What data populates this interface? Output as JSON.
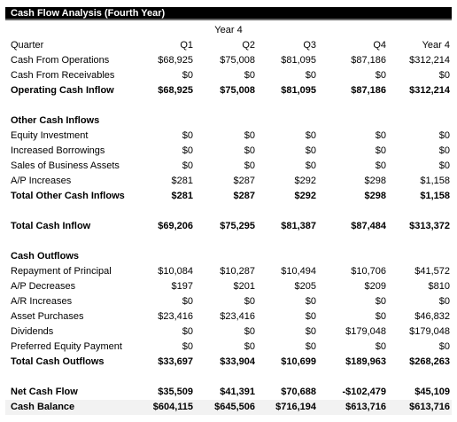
{
  "title": "Cash Flow Analysis (Fourth Year)",
  "year_label": "Year 4",
  "header": {
    "label": "Quarter",
    "q1": "Q1",
    "q2": "Q2",
    "q3": "Q3",
    "q4": "Q4",
    "total": "Year 4"
  },
  "rows": {
    "r1": {
      "label": "Cash From Operations",
      "q1": "$68,925",
      "q2": "$75,008",
      "q3": "$81,095",
      "q4": "$87,186",
      "total": "$312,214"
    },
    "r2": {
      "label": "Cash From Receivables",
      "q1": "$0",
      "q2": "$0",
      "q3": "$0",
      "q4": "$0",
      "total": "$0"
    },
    "r3": {
      "label": "Operating Cash Inflow",
      "q1": "$68,925",
      "q2": "$75,008",
      "q3": "$81,095",
      "q4": "$87,186",
      "total": "$312,214"
    },
    "r4": {
      "label": "Other Cash Inflows"
    },
    "r5": {
      "label": "Equity Investment",
      "q1": "$0",
      "q2": "$0",
      "q3": "$0",
      "q4": "$0",
      "total": "$0"
    },
    "r6": {
      "label": "Increased Borrowings",
      "q1": "$0",
      "q2": "$0",
      "q3": "$0",
      "q4": "$0",
      "total": "$0"
    },
    "r7": {
      "label": "Sales of Business Assets",
      "q1": "$0",
      "q2": "$0",
      "q3": "$0",
      "q4": "$0",
      "total": "$0"
    },
    "r8": {
      "label": "A/P Increases",
      "q1": "$281",
      "q2": "$287",
      "q3": "$292",
      "q4": "$298",
      "total": "$1,158"
    },
    "r9": {
      "label": "Total Other Cash Inflows",
      "q1": "$281",
      "q2": "$287",
      "q3": "$292",
      "q4": "$298",
      "total": "$1,158"
    },
    "r10": {
      "label": "Total Cash Inflow",
      "q1": "$69,206",
      "q2": "$75,295",
      "q3": "$81,387",
      "q4": "$87,484",
      "total": "$313,372"
    },
    "r11": {
      "label": "Cash Outflows"
    },
    "r12": {
      "label": "Repayment of Principal",
      "q1": "$10,084",
      "q2": "$10,287",
      "q3": "$10,494",
      "q4": "$10,706",
      "total": "$41,572"
    },
    "r13": {
      "label": "A/P Decreases",
      "q1": "$197",
      "q2": "$201",
      "q3": "$205",
      "q4": "$209",
      "total": "$810"
    },
    "r14": {
      "label": "A/R Increases",
      "q1": "$0",
      "q2": "$0",
      "q3": "$0",
      "q4": "$0",
      "total": "$0"
    },
    "r15": {
      "label": "Asset Purchases",
      "q1": "$23,416",
      "q2": "$23,416",
      "q3": "$0",
      "q4": "$0",
      "total": "$46,832"
    },
    "r16": {
      "label": "Dividends",
      "q1": "$0",
      "q2": "$0",
      "q3": "$0",
      "q4": "$179,048",
      "total": "$179,048"
    },
    "r17": {
      "label": "Preferred Equity Payment",
      "q1": "$0",
      "q2": "$0",
      "q3": "$0",
      "q4": "$0",
      "total": "$0"
    },
    "r18": {
      "label": "Total Cash Outflows",
      "q1": "$33,697",
      "q2": "$33,904",
      "q3": "$10,699",
      "q4": "$189,963",
      "total": "$268,263"
    },
    "r19": {
      "label": "Net Cash Flow",
      "q1": "$35,509",
      "q2": "$41,391",
      "q3": "$70,688",
      "q4": "-$102,479",
      "total": "$45,109"
    },
    "r20": {
      "label": "Cash Balance",
      "q1": "$604,115",
      "q2": "$645,506",
      "q3": "$716,194",
      "q4": "$613,716",
      "total": "$613,716"
    }
  }
}
